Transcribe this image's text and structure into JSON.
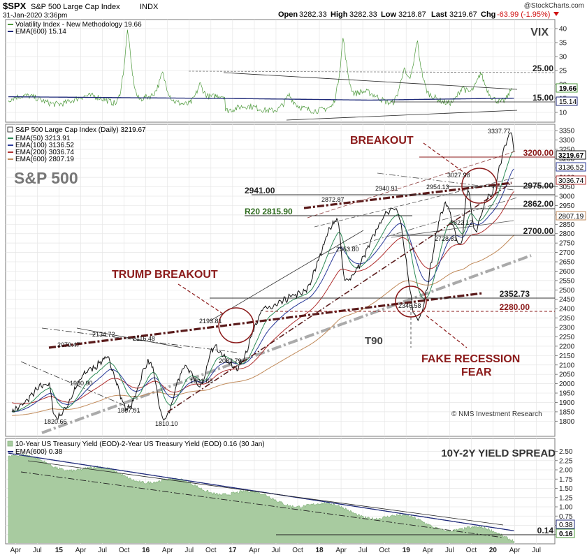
{
  "header": {
    "symbol": "$SPX",
    "name": "S&P 500 Large Cap Index",
    "exchange": "INDX",
    "date": "31-Jan-2020 3:36pm",
    "open_label": "Open",
    "open": "3282.33",
    "high_label": "High",
    "high": "3282.33",
    "low_label": "Low",
    "low": "3218.87",
    "last_label": "Last",
    "last": "3219.67",
    "chg_label": "Chg",
    "chg": "-63.99 (-1.95%)",
    "brand": "@StockCharts.com"
  },
  "vix": {
    "legend_main": "Volatility Index - New Methodology 19.66",
    "legend_ema": "EMA(600) 15.14",
    "title": "VIX",
    "ticks": [
      "40",
      "35",
      "30",
      "25",
      "20",
      "15",
      "10"
    ],
    "tick_values": [
      40,
      35,
      30,
      25,
      20,
      15,
      10
    ],
    "level_25": "25.00",
    "level_15": "15.00",
    "last_tag": "19.66",
    "ema_tag": "15.14",
    "colors": {
      "main": "#4e9a3c",
      "ema": "#1f2a7a"
    }
  },
  "spx": {
    "legend_main": "S&P 500 Large Cap Index (Daily) 3219.67",
    "legend_ema50": "EMA(50) 3213.91",
    "legend_ema100": "EMA(100) 3136.52",
    "legend_ema200": "EMA(200) 3036.74",
    "legend_ema600": "EMA(600) 2807.19",
    "title": "S&P 500",
    "ticks": [
      "3350",
      "3300",
      "3250",
      "3200",
      "3150",
      "3100",
      "3050",
      "3000",
      "2950",
      "2900",
      "2850",
      "2800",
      "2750",
      "2700",
      "2650",
      "2600",
      "2550",
      "2500",
      "2450",
      "2400",
      "2350",
      "2300",
      "2250",
      "2200",
      "2150",
      "2100",
      "2050",
      "2000",
      "1950",
      "1900",
      "1850",
      "1800"
    ],
    "tick_values": [
      3350,
      3300,
      3250,
      3200,
      3150,
      3100,
      3050,
      3000,
      2950,
      2900,
      2850,
      2800,
      2750,
      2700,
      2650,
      2600,
      2550,
      2500,
      2450,
      2400,
      2350,
      2300,
      2250,
      2200,
      2150,
      2100,
      2050,
      2000,
      1950,
      1900,
      1850,
      1800
    ],
    "tags": {
      "last": "3219.67",
      "ema100": "3136.52",
      "ema200": "3036.74",
      "ema600": "2807.19"
    },
    "levels": {
      "l3200": "3200.00",
      "l2975": "2975.00",
      "l2862": "2862.00",
      "l2700": "2700.00",
      "l2352": "2352.73",
      "l2280": "2280.00",
      "l2941": "2941.00",
      "r20": "R20  2815.90"
    },
    "annotations": {
      "breakout": "BREAKOUT",
      "trump": "TRUMP BREAKOUT",
      "fake1": "FAKE  RECESSION",
      "fake2": "FEAR",
      "t90": "T90",
      "credit": "© NMS Investment Research"
    },
    "point_labels": [
      "3337.77",
      "2079.47",
      "2134.72",
      "2116.48",
      "1980.90",
      "1820.66",
      "1867.01",
      "1810.10",
      "2193.81",
      "2083.79",
      "1991.68",
      "2872.87",
      "2553.80",
      "2940.91",
      "2954.13",
      "3027.98",
      "2822.12",
      "2728.81",
      "2346.58"
    ],
    "colors": {
      "ema50": "#2e8b57",
      "ema100": "#2a3a9a",
      "ema200": "#b03030",
      "ema600": "#c08a5a",
      "annotation": "#8b1a1a",
      "price": "#111111"
    }
  },
  "spread": {
    "legend_main": "10-Year US Treasury Yield (EOD)-2-Year US Treasury Yield (EOD) 0.16 (30 Jan)",
    "legend_ema": "EMA(600) 0.38",
    "title": "10Y-2Y YIELD SPREAD",
    "ticks": [
      "2.50",
      "2.25",
      "2.00",
      "1.75",
      "1.50",
      "1.25",
      "1.00",
      "0.75",
      "0.50",
      "0.25"
    ],
    "tick_values": [
      2.5,
      2.25,
      2.0,
      1.75,
      1.5,
      1.25,
      1.0,
      0.75,
      0.5,
      0.25
    ],
    "level_014": "0.14",
    "ema_tag": "0.38",
    "last_tag": "0.16",
    "colors": {
      "area": "#a8cba0",
      "ema": "#1f2a7a"
    }
  },
  "xaxis": {
    "labels": [
      "Apr",
      "Jul",
      "15",
      "Apr",
      "Jul",
      "Oct",
      "16",
      "Apr",
      "Jul",
      "Oct",
      "17",
      "Apr",
      "Jul",
      "Oct",
      "18",
      "Apr",
      "Jul",
      "Oct",
      "19",
      "Apr",
      "Jul",
      "Oct",
      "20",
      "Apr",
      "Jul"
    ],
    "bold": [
      "15",
      "16",
      "17",
      "18",
      "19",
      "20"
    ]
  },
  "chart_data": {
    "type": "line",
    "title": "S&P 500 Large Cap Index",
    "date_range": [
      "2014-04",
      "2020-01-31"
    ],
    "series": [
      {
        "name": "S&P 500 Large Cap Index (Daily)",
        "points": [
          [
            "2014-04",
            1860
          ],
          [
            "2014-09",
            2000
          ],
          [
            "2014-10",
            1820.66
          ],
          [
            "2015-03",
            2080
          ],
          [
            "2015-05",
            2134.72
          ],
          [
            "2015-08",
            1867.01
          ],
          [
            "2015-11",
            2116.48
          ],
          [
            "2016-01",
            1810.1
          ],
          [
            "2016-04",
            2090
          ],
          [
            "2016-06",
            1991.68
          ],
          [
            "2016-08",
            2193.81
          ],
          [
            "2016-11",
            2083.79
          ],
          [
            "2017-03",
            2400
          ],
          [
            "2017-08",
            2480
          ],
          [
            "2018-01",
            2872.87
          ],
          [
            "2018-02",
            2553.8
          ],
          [
            "2018-09",
            2940.91
          ],
          [
            "2018-12",
            2346.58
          ],
          [
            "2019-04",
            2954.13
          ],
          [
            "2019-06",
            2728.81
          ],
          [
            "2019-07",
            3027.98
          ],
          [
            "2019-08",
            2822.12
          ],
          [
            "2019-10",
            3000
          ],
          [
            "2020-01-17",
            3337.77
          ],
          [
            "2020-01-31",
            3219.67
          ]
        ]
      },
      {
        "name": "EMA(50)",
        "last": 3213.91
      },
      {
        "name": "EMA(100)",
        "last": 3136.52
      },
      {
        "name": "EMA(200)",
        "last": 3036.74
      },
      {
        "name": "EMA(600)",
        "last": 2807.19
      },
      {
        "name": "Volatility Index - New Methodology",
        "last": 19.66
      },
      {
        "name": "10-Year US Treasury Yield (EOD)-2-Year US Treasury Yield (EOD)",
        "last": 0.16
      }
    ],
    "horizontal_levels": [
      3200.0,
      2975.0,
      2941.0,
      2862.0,
      2815.9,
      2700.0,
      2352.73,
      2280.0
    ],
    "ylim_spx": [
      1750,
      3400
    ],
    "ylim_vix": [
      8,
      42
    ],
    "ylim_spread": [
      0,
      2.6
    ]
  }
}
